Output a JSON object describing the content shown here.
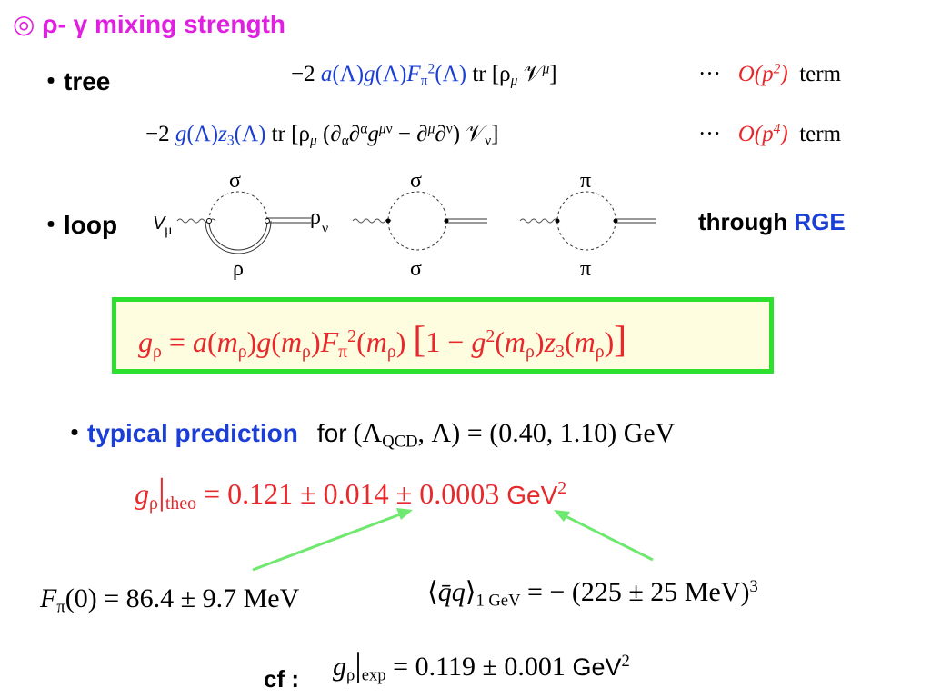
{
  "title": {
    "symbol": "◎",
    "text": "ρ- γ mixing strength"
  },
  "bullet": "・",
  "tree": {
    "label": "tree",
    "dots": "···",
    "order1": "O(p",
    "order1_exp": "2",
    "order2": "O(p",
    "order2_exp": "4",
    "term_word": "term"
  },
  "loop": {
    "label": "loop",
    "through": "through",
    "rge": "RGE"
  },
  "diagrams": {
    "d1": {
      "top": "σ",
      "bottom": "ρ",
      "left": "V",
      "left_sub": "μ",
      "right": "ρ",
      "right_sub": "ν"
    },
    "d2": {
      "top": "σ",
      "bottom": "σ"
    },
    "d3": {
      "top": "π",
      "bottom": "π"
    }
  },
  "prediction": {
    "label": "typical prediction",
    "for_word": "for",
    "gev_unit": "GeV"
  },
  "theo": {
    "value": "0.121 ± 0.014 ± 0.0003",
    "unit": "GeV",
    "unit_exp": "2"
  },
  "inputs": {
    "fpi": {
      "value": "86.4 ± 9.7",
      "unit": "MeV"
    },
    "condensate": {
      "value": "− (225 ± 25",
      "unit": "MeV)",
      "exp": "3"
    }
  },
  "cf": {
    "label": "cf :",
    "value": "0.119 ± 0.001",
    "unit": "GeV",
    "unit_exp": "2"
  },
  "colors": {
    "accent_magenta": "#e020e0",
    "blue": "#1b3fd6",
    "red": "#e8282b",
    "green": "#2ee02e",
    "box_fill": "#fffde0"
  }
}
